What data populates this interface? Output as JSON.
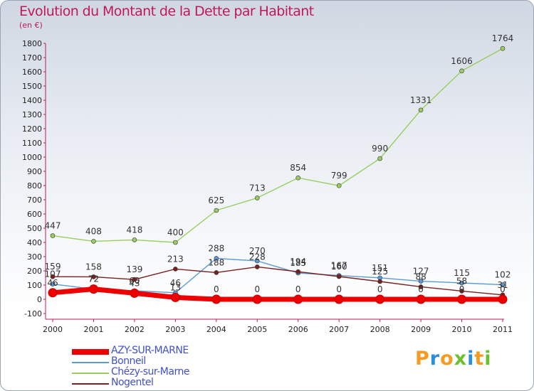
{
  "chart_data": {
    "type": "line",
    "title": "Evolution du Montant de la Dette par Habitant",
    "subtitle": "(en €)",
    "x": [
      "2000",
      "2001",
      "2002",
      "2003",
      "2004",
      "2005",
      "2006",
      "2007",
      "2008",
      "2009",
      "2010",
      "2011"
    ],
    "ylim": [
      -100,
      1800
    ],
    "yticks": [
      -100,
      0,
      100,
      200,
      300,
      400,
      500,
      600,
      700,
      800,
      900,
      1000,
      1100,
      1200,
      1300,
      1400,
      1500,
      1600,
      1700,
      1800
    ],
    "grid": false,
    "series": [
      {
        "name": "AZY-SUR-MARNE",
        "color": "#ee0000",
        "values": [
          46,
          72,
          43,
          13,
          0,
          0,
          0,
          0,
          0,
          0,
          0,
          0
        ]
      },
      {
        "name": "Bonneil",
        "color": "#5b9bd5",
        "values": [
          107,
          72,
          60,
          46,
          288,
          270,
          185,
          167,
          151,
          127,
          115,
          102
        ]
      },
      {
        "name": "Chézy-sur-Marne",
        "color": "#9acd62",
        "values": [
          447,
          408,
          418,
          400,
          625,
          713,
          854,
          799,
          990,
          1331,
          1606,
          1764
        ]
      },
      {
        "name": "Nogentel",
        "color": "#7a2020",
        "values": [
          159,
          158,
          139,
          213,
          188,
          228,
          194,
          160,
          125,
          88,
          58,
          31
        ]
      }
    ],
    "legend_position": "bottom-left"
  },
  "logo": {
    "text": "Proxiti",
    "colors": [
      "#f59a23",
      "#2a8fd6",
      "#f59a23",
      "#6cbf2e",
      "#2a8fd6",
      "#f59a23",
      "#6cbf2e"
    ]
  }
}
